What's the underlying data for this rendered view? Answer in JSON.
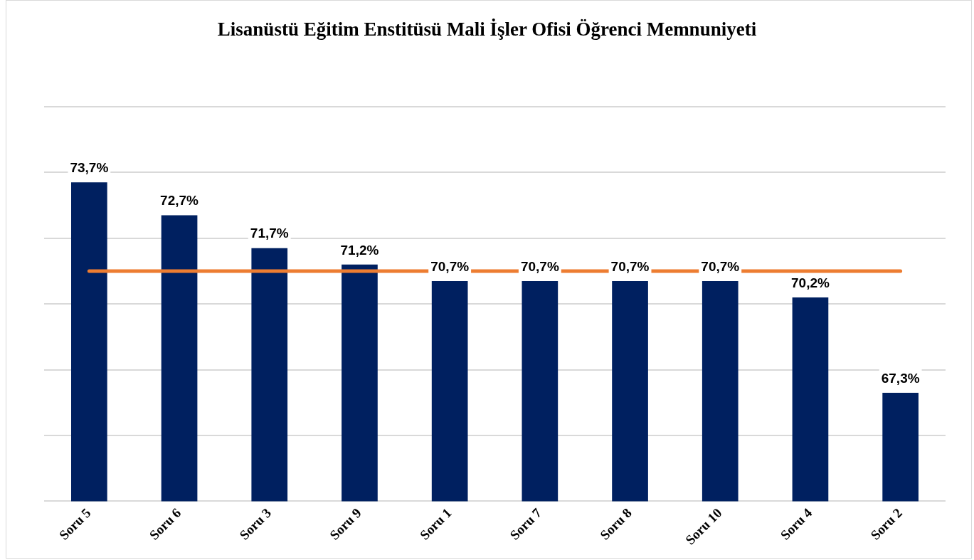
{
  "chart_data": {
    "type": "bar",
    "title": "Lisanüstü Eğitim Enstitüsü Mali İşler Ofisi Öğrenci Memnuniyeti",
    "categories": [
      "Soru 5",
      "Soru 6",
      "Soru 3",
      "Soru 9",
      "Soru 1",
      "Soru 7",
      "Soru 8",
      "Soru 10",
      "Soru 4",
      "Soru 2"
    ],
    "values": [
      73.7,
      72.7,
      71.7,
      71.2,
      70.7,
      70.7,
      70.7,
      70.7,
      70.2,
      67.3
    ],
    "value_labels": [
      "73,7%",
      "72,7%",
      "71,7%",
      "71,2%",
      "70,7%",
      "70,7%",
      "70,7%",
      "70,7%",
      "70,2%",
      "67,3%"
    ],
    "color": "#002060",
    "ylim": [
      64,
      76
    ],
    "yticks": [
      {
        "value": 64,
        "label": null
      },
      {
        "value": 66,
        "label": null
      },
      {
        "value": 68,
        "label": null
      },
      {
        "value": 70,
        "label": null
      },
      {
        "value": 72,
        "label": null
      },
      {
        "value": 74,
        "label": null
      },
      {
        "value": 76,
        "label": null
      }
    ],
    "tick_labels": "x",
    "grid": "y",
    "ref_lines": [
      {
        "axis": "y",
        "value": 71.0,
        "color": "#ed7d31"
      }
    ]
  }
}
